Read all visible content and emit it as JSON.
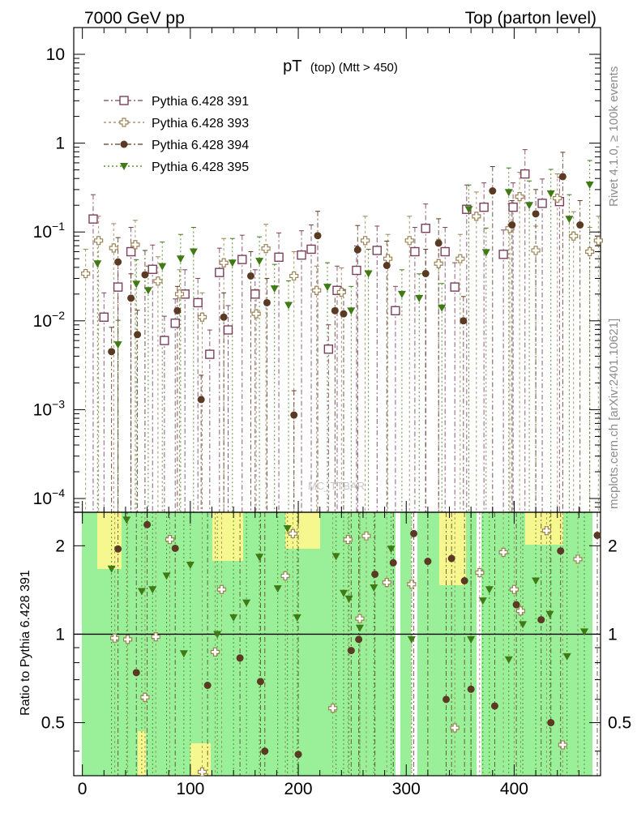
{
  "header": {
    "left": "7000 GeV pp",
    "right": "Top (parton level)"
  },
  "side_labels": {
    "rivet": "Rivet 4.1.0, ≥ 100k events",
    "mcplots": "mcplots.cern.ch [arXiv:2401.10621]"
  },
  "watermark": "MC_TTBAR",
  "colors": {
    "s391": "#7b3f5e",
    "s393": "#9c8354",
    "s394": "#5a3a22",
    "s395": "#3f7a14",
    "band_green": "#99f099",
    "band_yellow": "#f7f78f"
  },
  "chart_data": [
    {
      "type": "scatter",
      "title": "pT",
      "title_sub": "(top) (Mtt > 450)",
      "xlim": [
        -8,
        480
      ],
      "ylim": [
        7e-05,
        20
      ],
      "yscale": "log",
      "xlabel": "",
      "ylabel": "",
      "y_ticks": [
        {
          "value": 10,
          "label": "10",
          "sup": ""
        },
        {
          "value": 1,
          "label": "1",
          "sup": ""
        },
        {
          "value": 0.1,
          "label": "10",
          "sup": "−1"
        },
        {
          "value": 0.01,
          "label": "10",
          "sup": "−2"
        },
        {
          "value": 0.001,
          "label": "10",
          "sup": "−3"
        },
        {
          "value": 0.0001,
          "label": "10",
          "sup": "−4"
        }
      ],
      "legend": {
        "position": "top-left",
        "entries": [
          "Pythia 6.428 391",
          "Pythia 6.428 393",
          "Pythia 6.428 394",
          "Pythia 6.428 395"
        ]
      },
      "series": [
        {
          "name": "Pythia 6.428 391",
          "marker": "open-square",
          "x": [
            10,
            20,
            33,
            45,
            65,
            76,
            86,
            95,
            107,
            118,
            127,
            135,
            148,
            160,
            182,
            203,
            212,
            228,
            236,
            254,
            273,
            290,
            308,
            318,
            336,
            345,
            356,
            372,
            390,
            399,
            410,
            426,
            442
          ],
          "y": [
            0.14,
            0.011,
            0.024,
            0.06,
            0.038,
            0.006,
            0.0094,
            0.02,
            0.016,
            0.0042,
            0.035,
            0.0079,
            0.049,
            0.02,
            0.052,
            0.055,
            0.064,
            0.0048,
            0.022,
            0.037,
            0.062,
            0.013,
            0.06,
            0.11,
            0.06,
            0.024,
            0.18,
            0.19,
            0.056,
            0.19,
            0.45,
            0.21,
            0.22
          ]
        },
        {
          "name": "Pythia 6.428 393",
          "marker": "open-cross",
          "x": [
            3,
            15,
            29,
            49,
            70,
            90,
            111,
            131,
            161,
            170,
            196,
            217,
            240,
            262,
            283,
            303,
            330,
            350,
            365,
            396,
            405,
            420,
            440,
            455,
            470,
            478
          ],
          "y": [
            0.034,
            0.08,
            0.066,
            0.072,
            0.028,
            0.02,
            0.011,
            0.045,
            0.012,
            0.065,
            0.032,
            0.022,
            0.021,
            0.08,
            0.05,
            0.08,
            0.044,
            0.05,
            0.15,
            0.11,
            0.25,
            0.062,
            0.24,
            0.09,
            0.06,
            0.08
          ]
        },
        {
          "name": "Pythia 6.428 394",
          "marker": "filled-circle",
          "x": [
            27,
            33,
            45,
            51,
            58,
            88,
            110,
            131,
            156,
            171,
            196,
            218,
            234,
            242,
            255,
            282,
            318,
            330,
            353,
            380,
            398,
            420,
            445,
            461
          ],
          "y": [
            0.0045,
            0.046,
            0.018,
            0.007,
            0.033,
            0.013,
            0.0013,
            0.011,
            0.032,
            0.016,
            0.00087,
            0.091,
            0.013,
            0.012,
            0.063,
            0.042,
            0.034,
            0.075,
            0.01,
            0.29,
            0.12,
            0.16,
            0.42,
            0.12
          ]
        },
        {
          "name": "Pythia 6.428 395",
          "marker": "filled-triangle",
          "x": [
            14,
            33,
            50,
            61,
            74,
            91,
            103,
            139,
            164,
            178,
            191,
            227,
            249,
            265,
            296,
            312,
            333,
            358,
            374,
            395,
            414,
            434,
            451,
            470
          ],
          "y": [
            0.044,
            0.0054,
            0.026,
            0.022,
            0.041,
            0.05,
            0.06,
            0.045,
            0.047,
            0.023,
            0.015,
            0.024,
            0.013,
            0.034,
            0.02,
            0.018,
            0.014,
            0.18,
            0.059,
            0.28,
            0.2,
            0.27,
            0.14,
            0.34
          ]
        }
      ]
    },
    {
      "type": "scatter",
      "title": "",
      "xlim": [
        -8,
        480
      ],
      "ylim": [
        0.33,
        2.6
      ],
      "yscale": "log",
      "xlabel": "",
      "ylabel": "Ratio to Pythia 6.428 391",
      "x_ticks": [
        0,
        100,
        200,
        300,
        400
      ],
      "y_ticks": [
        {
          "value": 2,
          "label": "2"
        },
        {
          "value": 1,
          "label": "1"
        },
        {
          "value": 0.5,
          "label": "0.5"
        }
      ],
      "reference_line": 1,
      "series": [
        {
          "name": "Pythia 6.428 393",
          "marker": "open-cross",
          "x": [
            30,
            42,
            58,
            68,
            81,
            111,
            123,
            129,
            188,
            195,
            232,
            246,
            257,
            263,
            282,
            305,
            345,
            368,
            390,
            400,
            406,
            430,
            445,
            459
          ],
          "y": [
            0.97,
            0.96,
            0.61,
            0.98,
            2.1,
            0.34,
            0.87,
            1.42,
            1.58,
            2.2,
            0.56,
            2.1,
            1.13,
            2.16,
            1.5,
            1.48,
            0.48,
            1.62,
            1.9,
            1.42,
            1.2,
            2.25,
            0.42,
            1.8
          ]
        },
        {
          "name": "Pythia 6.428 394",
          "marker": "filled-circle",
          "x": [
            33,
            50,
            60,
            86,
            116,
            146,
            165,
            169,
            200,
            249,
            256,
            271,
            288,
            307,
            320,
            337,
            342,
            354,
            360,
            382,
            402,
            425,
            434,
            443,
            477
          ],
          "y": [
            1.95,
            0.74,
            2.36,
            1.96,
            0.67,
            0.83,
            0.69,
            0.4,
            0.39,
            0.88,
            0.96,
            1.6,
            1.75,
            2.2,
            1.77,
            0.6,
            1.81,
            1.52,
            0.65,
            0.57,
            1.26,
            1.12,
            0.5,
            1.92,
            2.17
          ]
        },
        {
          "name": "Pythia 6.428 395",
          "marker": "filled-triangle",
          "x": [
            27,
            41,
            55,
            65,
            78,
            94,
            100,
            125,
            140,
            152,
            164,
            181,
            190,
            199,
            235,
            242,
            247,
            257,
            270,
            286,
            305,
            360,
            371,
            377,
            395,
            408,
            420,
            433,
            449,
            465
          ],
          "y": [
            1.67,
            2.45,
            1.4,
            1.42,
            1.58,
            0.86,
            1.72,
            1.0,
            1.14,
            1.28,
            1.83,
            1.43,
            2.29,
            1.14,
            1.84,
            1.38,
            1.32,
            1.05,
            1.44,
            1.95,
            0.96,
            0.96,
            1.3,
            1.42,
            0.82,
            1.08,
            1.52,
            1.17,
            0.84,
            1.02
          ]
        }
      ]
    }
  ]
}
